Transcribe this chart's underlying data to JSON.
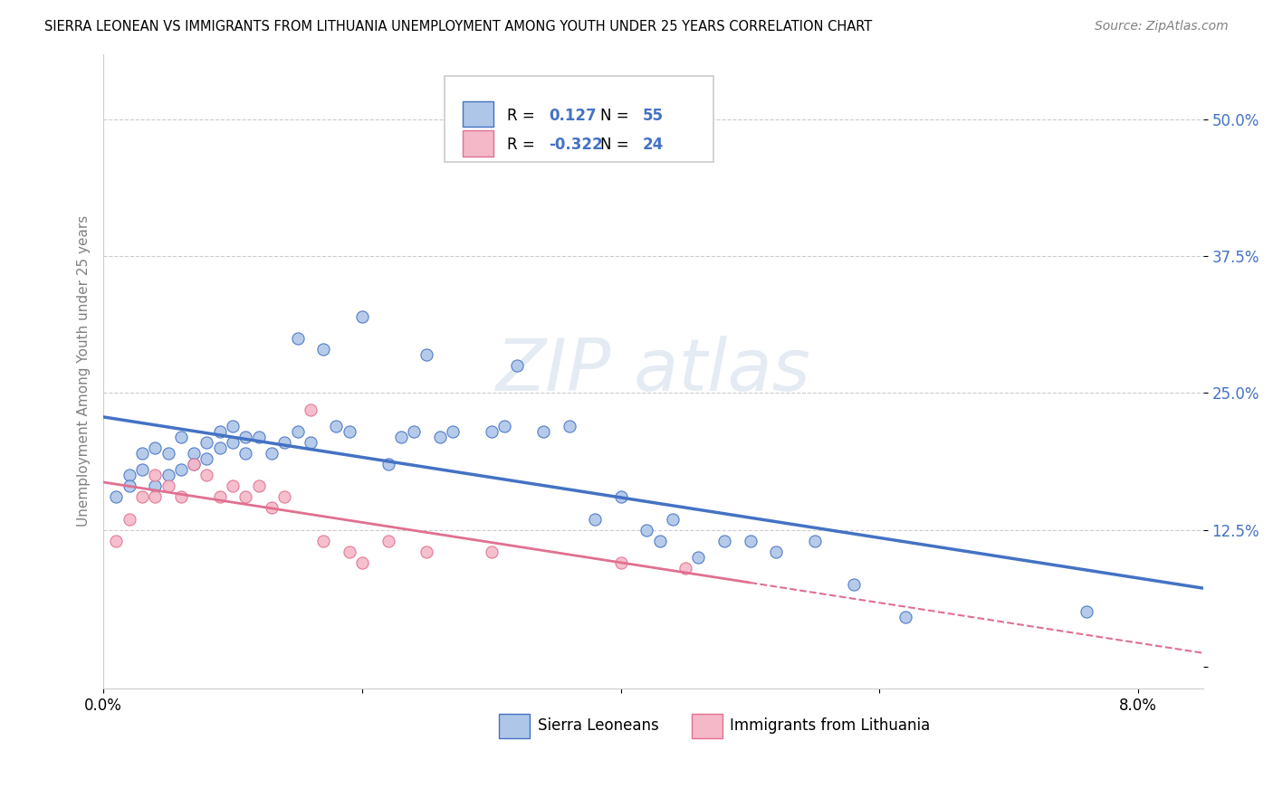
{
  "title": "SIERRA LEONEAN VS IMMIGRANTS FROM LITHUANIA UNEMPLOYMENT AMONG YOUTH UNDER 25 YEARS CORRELATION CHART",
  "source": "Source: ZipAtlas.com",
  "ylabel": "Unemployment Among Youth under 25 years",
  "xlim": [
    0.0,
    0.085
  ],
  "ylim": [
    -0.02,
    0.56
  ],
  "ytick_vals": [
    0.0,
    0.125,
    0.25,
    0.375,
    0.5
  ],
  "ytick_labels": [
    "",
    "12.5%",
    "25.0%",
    "37.5%",
    "50.0%"
  ],
  "xtick_vals": [
    0.0,
    0.02,
    0.04,
    0.06,
    0.08
  ],
  "xtick_labels": [
    "0.0%",
    "",
    "",
    "",
    "8.0%"
  ],
  "r_blue": 0.127,
  "n_blue": 55,
  "r_pink": -0.322,
  "n_pink": 24,
  "blue_fill": "#aec6e8",
  "pink_fill": "#f4b8c8",
  "blue_edge": "#4472c4",
  "pink_edge": "#e07090",
  "blue_line": "#4472c4",
  "pink_line": "#e07090",
  "legend_blue": "Sierra Leoneans",
  "legend_pink": "Immigrants from Lithuania",
  "blue_scatter": [
    [
      0.001,
      0.155
    ],
    [
      0.002,
      0.175
    ],
    [
      0.002,
      0.165
    ],
    [
      0.003,
      0.195
    ],
    [
      0.003,
      0.18
    ],
    [
      0.004,
      0.165
    ],
    [
      0.004,
      0.2
    ],
    [
      0.005,
      0.175
    ],
    [
      0.005,
      0.195
    ],
    [
      0.006,
      0.18
    ],
    [
      0.006,
      0.21
    ],
    [
      0.007,
      0.195
    ],
    [
      0.007,
      0.185
    ],
    [
      0.008,
      0.205
    ],
    [
      0.008,
      0.19
    ],
    [
      0.009,
      0.2
    ],
    [
      0.009,
      0.215
    ],
    [
      0.01,
      0.205
    ],
    [
      0.01,
      0.22
    ],
    [
      0.011,
      0.21
    ],
    [
      0.011,
      0.195
    ],
    [
      0.012,
      0.21
    ],
    [
      0.013,
      0.195
    ],
    [
      0.014,
      0.205
    ],
    [
      0.015,
      0.215
    ],
    [
      0.015,
      0.3
    ],
    [
      0.016,
      0.205
    ],
    [
      0.017,
      0.29
    ],
    [
      0.018,
      0.22
    ],
    [
      0.019,
      0.215
    ],
    [
      0.02,
      0.32
    ],
    [
      0.022,
      0.185
    ],
    [
      0.023,
      0.21
    ],
    [
      0.024,
      0.215
    ],
    [
      0.025,
      0.285
    ],
    [
      0.026,
      0.21
    ],
    [
      0.027,
      0.215
    ],
    [
      0.03,
      0.215
    ],
    [
      0.031,
      0.22
    ],
    [
      0.032,
      0.275
    ],
    [
      0.034,
      0.215
    ],
    [
      0.036,
      0.22
    ],
    [
      0.038,
      0.135
    ],
    [
      0.04,
      0.155
    ],
    [
      0.042,
      0.125
    ],
    [
      0.043,
      0.115
    ],
    [
      0.044,
      0.135
    ],
    [
      0.046,
      0.1
    ],
    [
      0.048,
      0.115
    ],
    [
      0.05,
      0.115
    ],
    [
      0.052,
      0.105
    ],
    [
      0.055,
      0.115
    ],
    [
      0.058,
      0.075
    ],
    [
      0.062,
      0.045
    ],
    [
      0.076,
      0.05
    ]
  ],
  "pink_scatter": [
    [
      0.001,
      0.115
    ],
    [
      0.002,
      0.135
    ],
    [
      0.003,
      0.155
    ],
    [
      0.004,
      0.155
    ],
    [
      0.004,
      0.175
    ],
    [
      0.005,
      0.165
    ],
    [
      0.006,
      0.155
    ],
    [
      0.007,
      0.185
    ],
    [
      0.008,
      0.175
    ],
    [
      0.009,
      0.155
    ],
    [
      0.01,
      0.165
    ],
    [
      0.011,
      0.155
    ],
    [
      0.012,
      0.165
    ],
    [
      0.013,
      0.145
    ],
    [
      0.014,
      0.155
    ],
    [
      0.016,
      0.235
    ],
    [
      0.017,
      0.115
    ],
    [
      0.019,
      0.105
    ],
    [
      0.02,
      0.095
    ],
    [
      0.022,
      0.115
    ],
    [
      0.025,
      0.105
    ],
    [
      0.03,
      0.105
    ],
    [
      0.04,
      0.095
    ],
    [
      0.045,
      0.09
    ]
  ]
}
